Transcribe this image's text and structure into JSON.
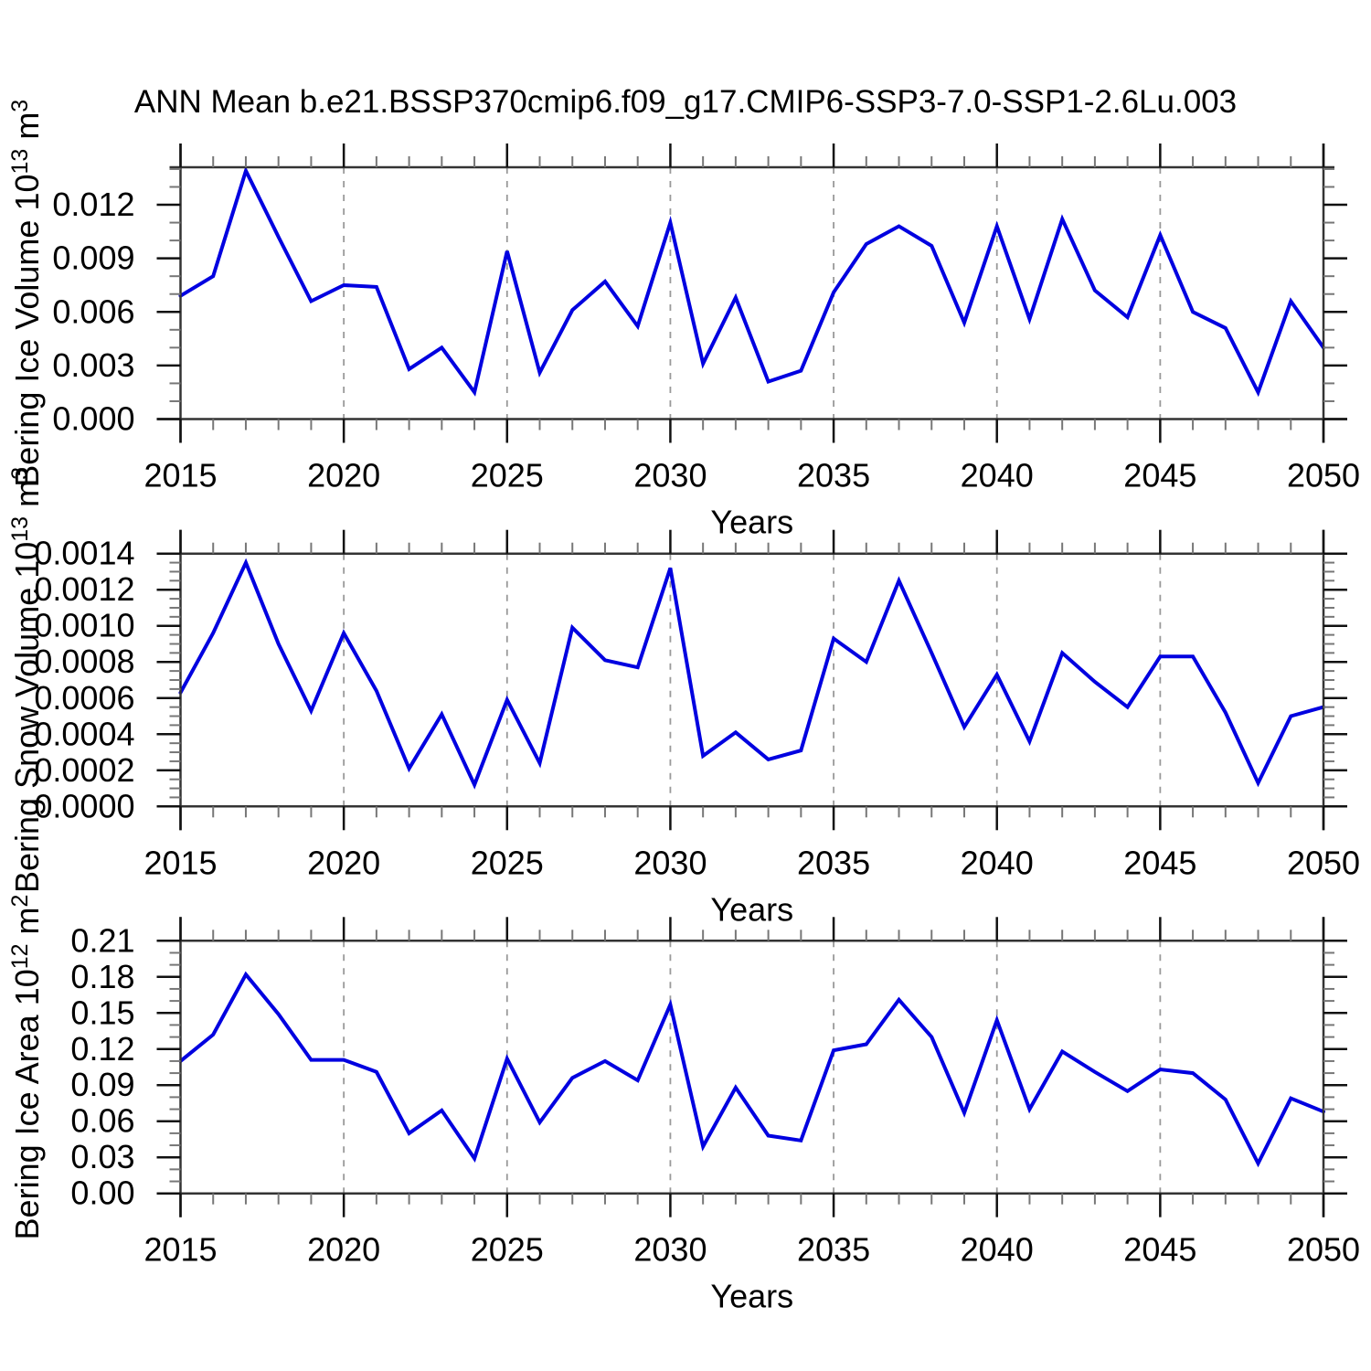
{
  "title": "ANN Mean b.e21.BSSP370cmip6.f09_g17.CMIP6-SSP3-7.0-SSP1-2.6Lu.003",
  "colors": {
    "line": "#0000e0",
    "frame": "#333333",
    "major_tick": "#111111",
    "minor_tick": "#777777",
    "grid": "#999999",
    "text": "#000000"
  },
  "x_axis": {
    "label": "Years",
    "start": 2015,
    "end": 2050,
    "major_step": 5,
    "minor_step": 1,
    "grid_years": [
      2020,
      2025,
      2030,
      2035,
      2040,
      2045
    ],
    "tick_labels": [
      "2015",
      "2020",
      "2025",
      "2030",
      "2035",
      "2040",
      "2045",
      "2050"
    ]
  },
  "chart_data": [
    {
      "type": "line",
      "name": "bering-ice-volume",
      "ylabel": "Bering Ice Volume 10^13 m^3",
      "ylabel_parts": [
        {
          "text": "Bering Ice Volume 10"
        },
        {
          "sup": "13"
        },
        {
          "text": " m"
        },
        {
          "sup": "3"
        }
      ],
      "xlabel": "Years",
      "ylim": [
        0,
        0.0141
      ],
      "ytick_step": 0.003,
      "yminor_step": 0.001,
      "ytick_labels": [
        "0.000",
        "0.003",
        "0.006",
        "0.009",
        "0.012"
      ],
      "x": [
        2015,
        2016,
        2017,
        2018,
        2019,
        2020,
        2021,
        2022,
        2023,
        2024,
        2025,
        2026,
        2027,
        2028,
        2029,
        2030,
        2031,
        2032,
        2033,
        2034,
        2035,
        2036,
        2037,
        2038,
        2039,
        2040,
        2041,
        2042,
        2043,
        2044,
        2045,
        2046,
        2047,
        2048,
        2049,
        2050
      ],
      "values": [
        0.0069,
        0.008,
        0.0139,
        0.0102,
        0.0066,
        0.0075,
        0.0074,
        0.0028,
        0.004,
        0.0015,
        0.0094,
        0.0026,
        0.0061,
        0.0077,
        0.0052,
        0.011,
        0.0031,
        0.0068,
        0.0021,
        0.0027,
        0.0071,
        0.0098,
        0.0108,
        0.0097,
        0.0054,
        0.0108,
        0.0056,
        0.0112,
        0.0072,
        0.0057,
        0.0103,
        0.006,
        0.0051,
        0.0015,
        0.0066,
        0.004
      ]
    },
    {
      "type": "line",
      "name": "bering-snow-volume",
      "ylabel": "Bering Snow Volume 10^13 m^3",
      "ylabel_parts": [
        {
          "text": "Bering Snow Volume 10"
        },
        {
          "sup": "13"
        },
        {
          "text": " m"
        },
        {
          "sup": "3"
        }
      ],
      "xlabel": "Years",
      "ylim": [
        0,
        0.0014
      ],
      "ytick_step": 0.0002,
      "yminor_step": 5e-05,
      "ytick_labels": [
        "0.0000",
        "0.0002",
        "0.0004",
        "0.0006",
        "0.0008",
        "0.0010",
        "0.0012",
        "0.0014"
      ],
      "x": [
        2015,
        2016,
        2017,
        2018,
        2019,
        2020,
        2021,
        2022,
        2023,
        2024,
        2025,
        2026,
        2027,
        2028,
        2029,
        2030,
        2031,
        2032,
        2033,
        2034,
        2035,
        2036,
        2037,
        2038,
        2039,
        2040,
        2041,
        2042,
        2043,
        2044,
        2045,
        2046,
        2047,
        2048,
        2049,
        2050
      ],
      "values": [
        0.00063,
        0.00096,
        0.00135,
        0.0009,
        0.00053,
        0.00096,
        0.00064,
        0.00021,
        0.00051,
        0.00012,
        0.00059,
        0.00024,
        0.00099,
        0.00081,
        0.00077,
        0.00132,
        0.00028,
        0.00041,
        0.00026,
        0.00031,
        0.00093,
        0.0008,
        0.00125,
        0.00085,
        0.00044,
        0.00073,
        0.00036,
        0.00085,
        0.00069,
        0.00055,
        0.00083,
        0.00083,
        0.00052,
        0.00013,
        0.0005,
        0.00055
      ]
    },
    {
      "type": "line",
      "name": "bering-ice-area",
      "ylabel": "Bering Ice Area 10^12 m^2",
      "ylabel_parts": [
        {
          "text": "Bering Ice Area 10"
        },
        {
          "sup": "12"
        },
        {
          "text": " m"
        },
        {
          "sup": "2"
        }
      ],
      "xlabel": "Years",
      "ylim": [
        0,
        0.21
      ],
      "ytick_step": 0.03,
      "yminor_step": 0.01,
      "ytick_labels": [
        "0.00",
        "0.03",
        "0.06",
        "0.09",
        "0.12",
        "0.15",
        "0.18",
        "0.21"
      ],
      "x": [
        2015,
        2016,
        2017,
        2018,
        2019,
        2020,
        2021,
        2022,
        2023,
        2024,
        2025,
        2026,
        2027,
        2028,
        2029,
        2030,
        2031,
        2032,
        2033,
        2034,
        2035,
        2036,
        2037,
        2038,
        2039,
        2040,
        2041,
        2042,
        2043,
        2044,
        2045,
        2046,
        2047,
        2048,
        2049,
        2050
      ],
      "values": [
        0.11,
        0.132,
        0.182,
        0.149,
        0.111,
        0.111,
        0.101,
        0.05,
        0.069,
        0.029,
        0.112,
        0.059,
        0.096,
        0.11,
        0.094,
        0.157,
        0.039,
        0.088,
        0.048,
        0.044,
        0.119,
        0.124,
        0.161,
        0.13,
        0.067,
        0.144,
        0.07,
        0.118,
        0.101,
        0.085,
        0.103,
        0.1,
        0.078,
        0.025,
        0.079,
        0.068
      ]
    }
  ]
}
